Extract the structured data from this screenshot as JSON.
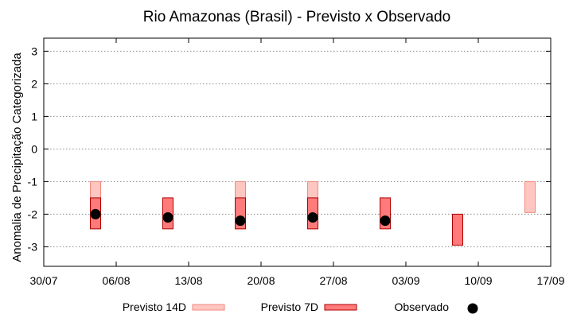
{
  "chart_data": {
    "type": "bar",
    "title": "Rio Amazonas (Brasil) - Previsto x Observado",
    "xlabel": "",
    "ylabel": "Anomalia de Precipitação Categorizada",
    "xlim": [
      "2024-07-30",
      "2024-09-17"
    ],
    "ylim": [
      -3.6,
      3.4
    ],
    "x_ticks": [
      "30/07",
      "06/08",
      "13/08",
      "20/08",
      "27/08",
      "03/09",
      "10/09",
      "17/09"
    ],
    "y_ticks": [
      3,
      2,
      1,
      0,
      -1,
      -2,
      -3
    ],
    "grid": true,
    "legend_position": "bottom",
    "series": [
      {
        "name": "Previsto 14D",
        "kind": "range-bar",
        "color": "#fdc6c0",
        "stroke": "#f08a80",
        "points": [
          {
            "date": "2024-08-04",
            "low": -2.45,
            "high": -1.0
          },
          {
            "date": "2024-08-18",
            "low": -2.45,
            "high": -1.0
          },
          {
            "date": "2024-08-25",
            "low": -2.45,
            "high": -1.0
          },
          {
            "date": "2024-09-15",
            "low": -1.95,
            "high": -1.0
          }
        ]
      },
      {
        "name": "Previsto 7D",
        "kind": "range-bar",
        "color": "#ff7a7a",
        "stroke": "#b00000",
        "points": [
          {
            "date": "2024-08-04",
            "low": -2.45,
            "high": -1.5
          },
          {
            "date": "2024-08-11",
            "low": -2.45,
            "high": -1.5
          },
          {
            "date": "2024-08-18",
            "low": -2.45,
            "high": -1.5
          },
          {
            "date": "2024-08-25",
            "low": -2.45,
            "high": -1.5
          },
          {
            "date": "2024-09-01",
            "low": -2.45,
            "high": -1.5
          },
          {
            "date": "2024-09-08",
            "low": -2.95,
            "high": -2.0
          }
        ]
      },
      {
        "name": "Observado",
        "kind": "point",
        "color": "#000000",
        "points": [
          {
            "date": "2024-08-04",
            "value": -2.0
          },
          {
            "date": "2024-08-11",
            "value": -2.1
          },
          {
            "date": "2024-08-18",
            "value": -2.2
          },
          {
            "date": "2024-08-25",
            "value": -2.1
          },
          {
            "date": "2024-09-01",
            "value": -2.2
          }
        ]
      }
    ]
  }
}
